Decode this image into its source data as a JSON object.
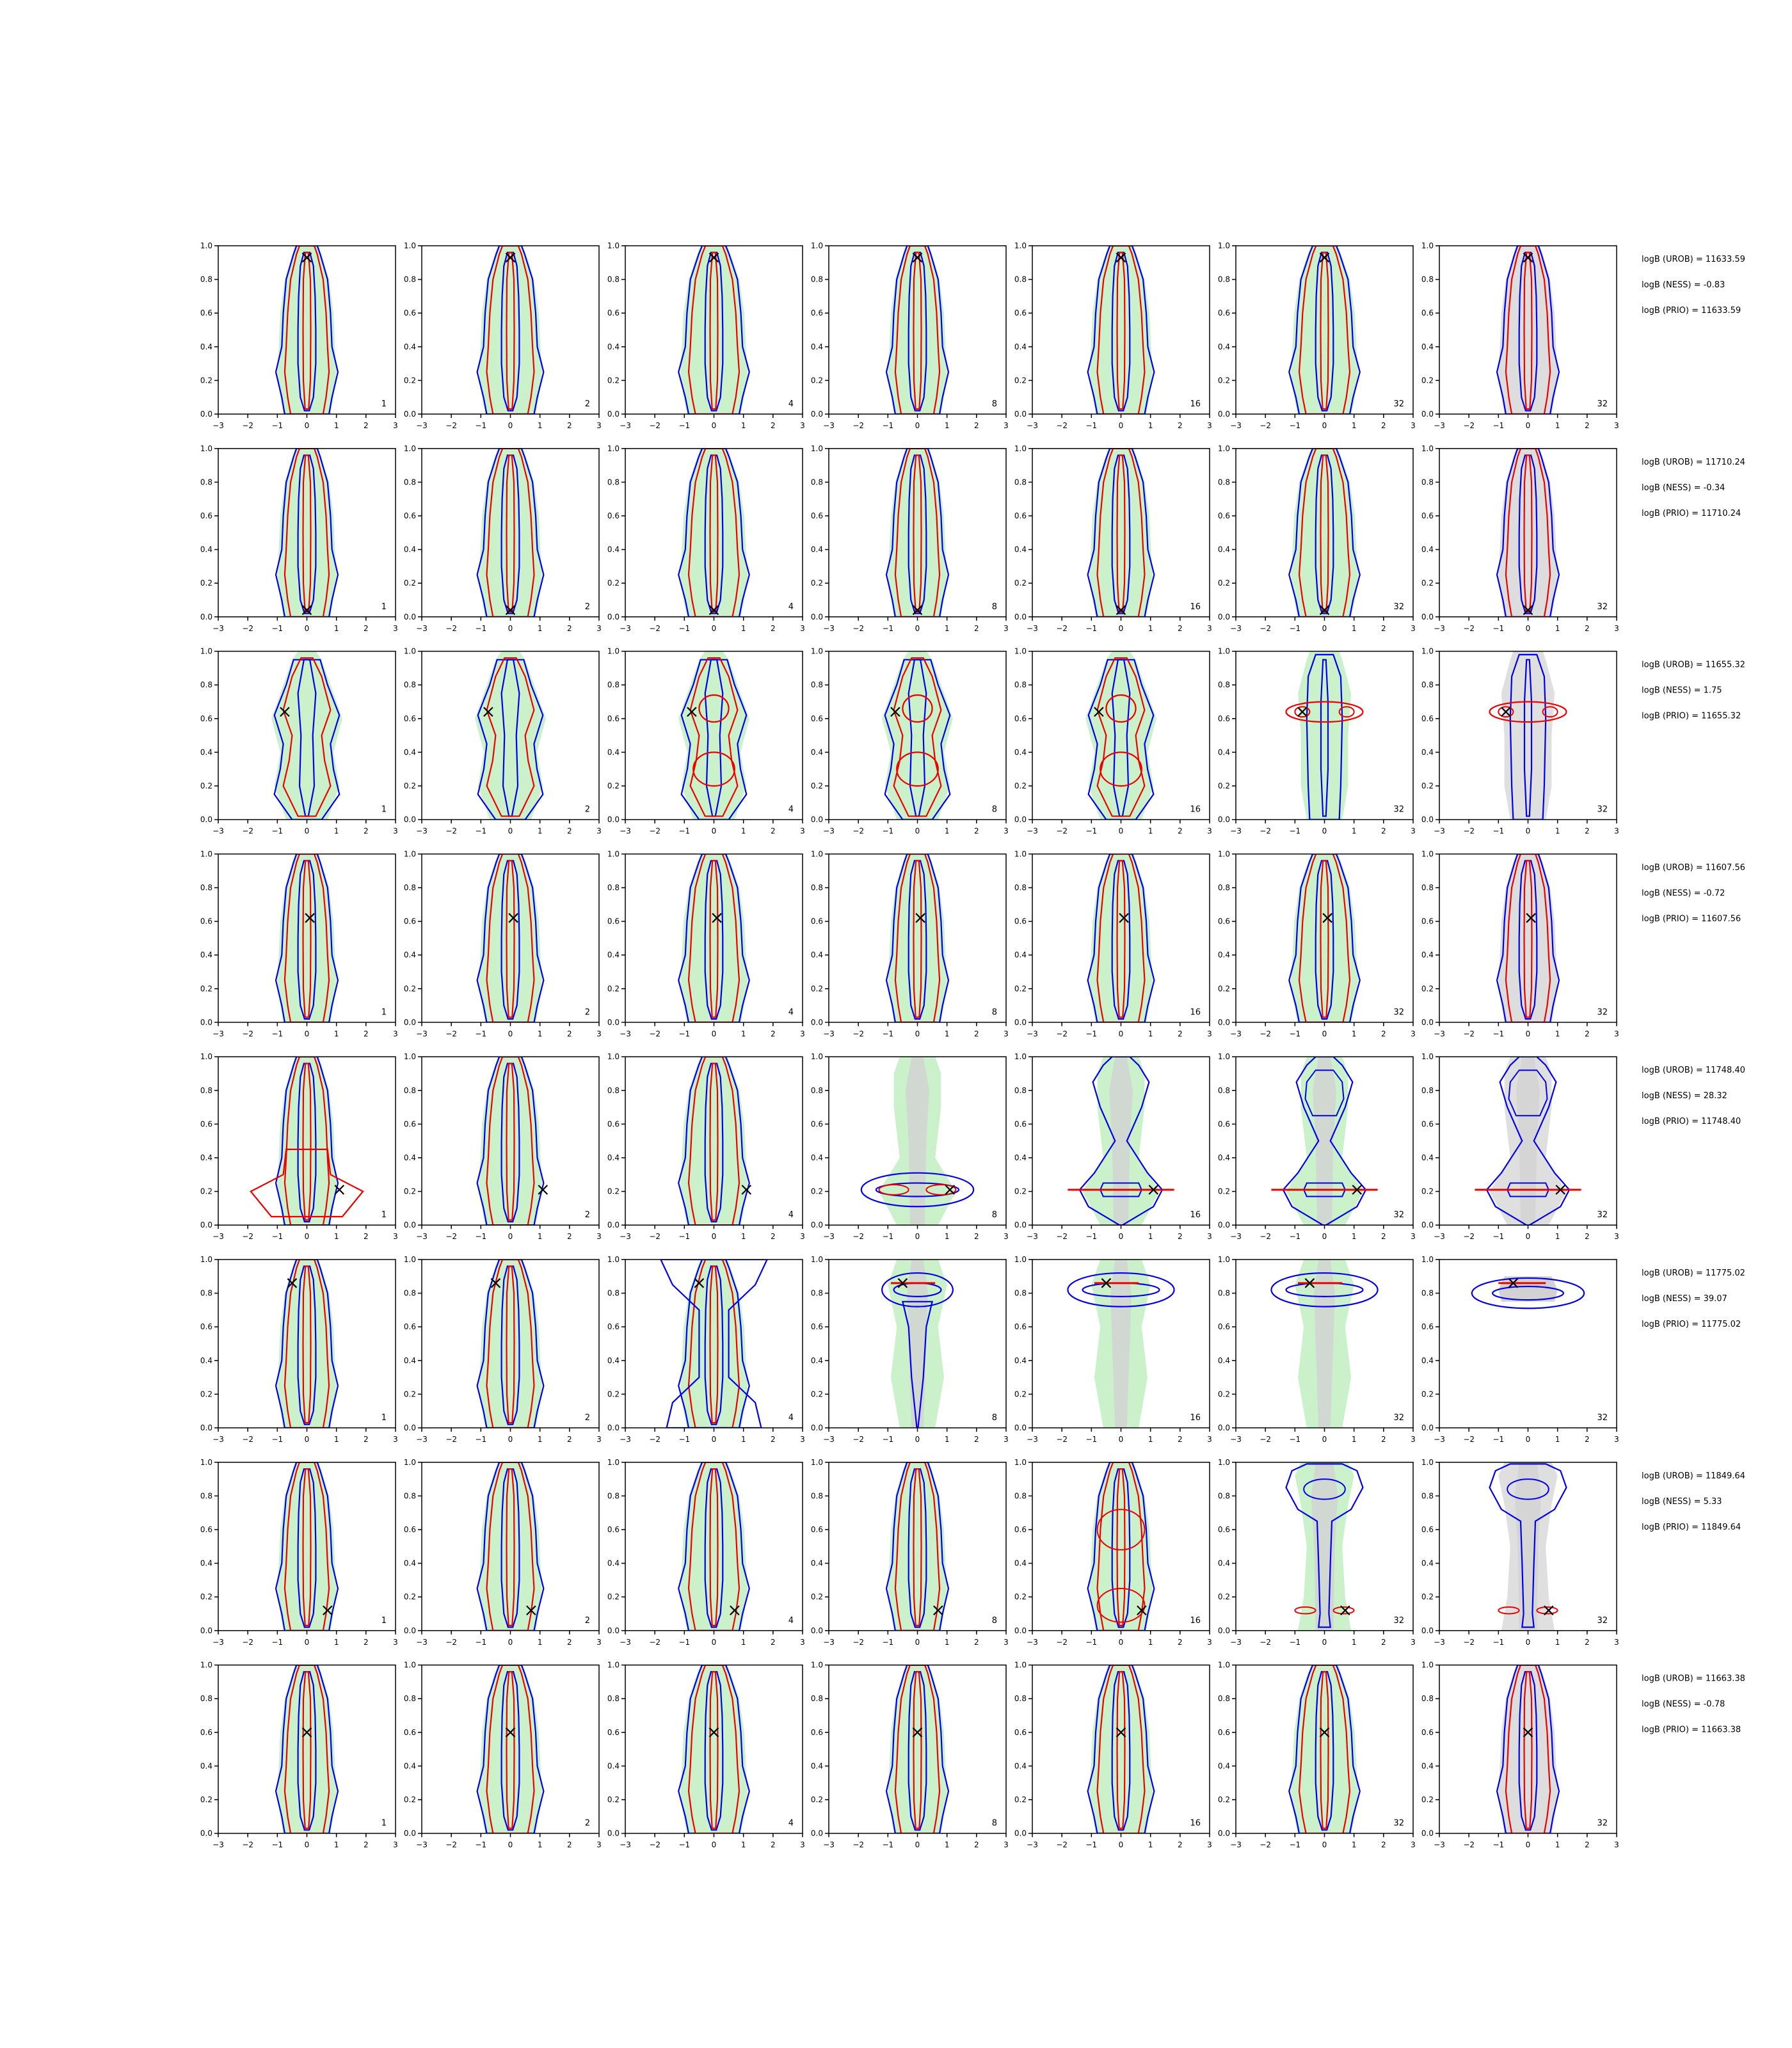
{
  "chart_data": {
    "type": "contour",
    "layout": {
      "rows": 8,
      "cols": 7
    },
    "xlim": [
      -3,
      3
    ],
    "ylim": [
      0.0,
      1.0
    ],
    "x_ticks": [
      "−3",
      "−2",
      "−1",
      "0",
      "1",
      "2",
      "3"
    ],
    "y_ticks": [
      "0.0",
      "0.2",
      "0.4",
      "0.6",
      "0.8",
      "1.0"
    ],
    "panel_labels": [
      "1",
      "2",
      "4",
      "8",
      "16",
      "32",
      "32"
    ],
    "colors": {
      "green_fill": "#b4ebb4",
      "grey_fill": "#d2d2d2",
      "blue_contour": "#0000ee",
      "red_contour": "#ee0000",
      "marker": "#000000"
    },
    "rows": [
      {
        "marker": [
          0.0,
          0.93
        ],
        "style": "narrow",
        "ann": [
          "logB (UROB) = 11633.59",
          "logB (NESS) = -0.83",
          "logB (PRIO) = 11633.59"
        ]
      },
      {
        "marker": [
          0.0,
          0.04
        ],
        "style": "narrow",
        "ann": [
          "logB (UROB) = 11710.24",
          "logB (NESS) = -0.34",
          "logB (PRIO) = 11710.24"
        ]
      },
      {
        "marker": [
          -0.75,
          0.64
        ],
        "style": "ring",
        "ann": [
          "logB (UROB) = 11655.32",
          "logB (NESS) = 1.75",
          "logB (PRIO) = 11655.32"
        ]
      },
      {
        "marker": [
          0.1,
          0.62
        ],
        "style": "narrow",
        "ann": [
          "logB (UROB) = 11607.56",
          "logB (NESS) = -0.72",
          "logB (PRIO) = 11607.56"
        ]
      },
      {
        "marker": [
          1.1,
          0.21
        ],
        "style": "balloon",
        "ann": [
          "logB (UROB) = 11748.40",
          "logB (NESS) = 28.32",
          "logB (PRIO) = 11748.40"
        ]
      },
      {
        "marker": [
          -0.5,
          0.86
        ],
        "style": "top",
        "ann": [
          "logB (UROB) = 11775.02",
          "logB (NESS) = 39.07",
          "logB (PRIO) = 11775.02"
        ]
      },
      {
        "marker": [
          0.7,
          0.12
        ],
        "style": "balloon2",
        "ann": [
          "logB (UROB) = 11849.64",
          "logB (NESS) = 5.33",
          "logB (PRIO) = 11849.64"
        ]
      },
      {
        "marker": [
          0.0,
          0.6
        ],
        "style": "narrow",
        "ann": [
          "logB (UROB) = 11663.38",
          "logB (NESS) = -0.78",
          "logB (PRIO) = 11663.38"
        ]
      }
    ]
  }
}
